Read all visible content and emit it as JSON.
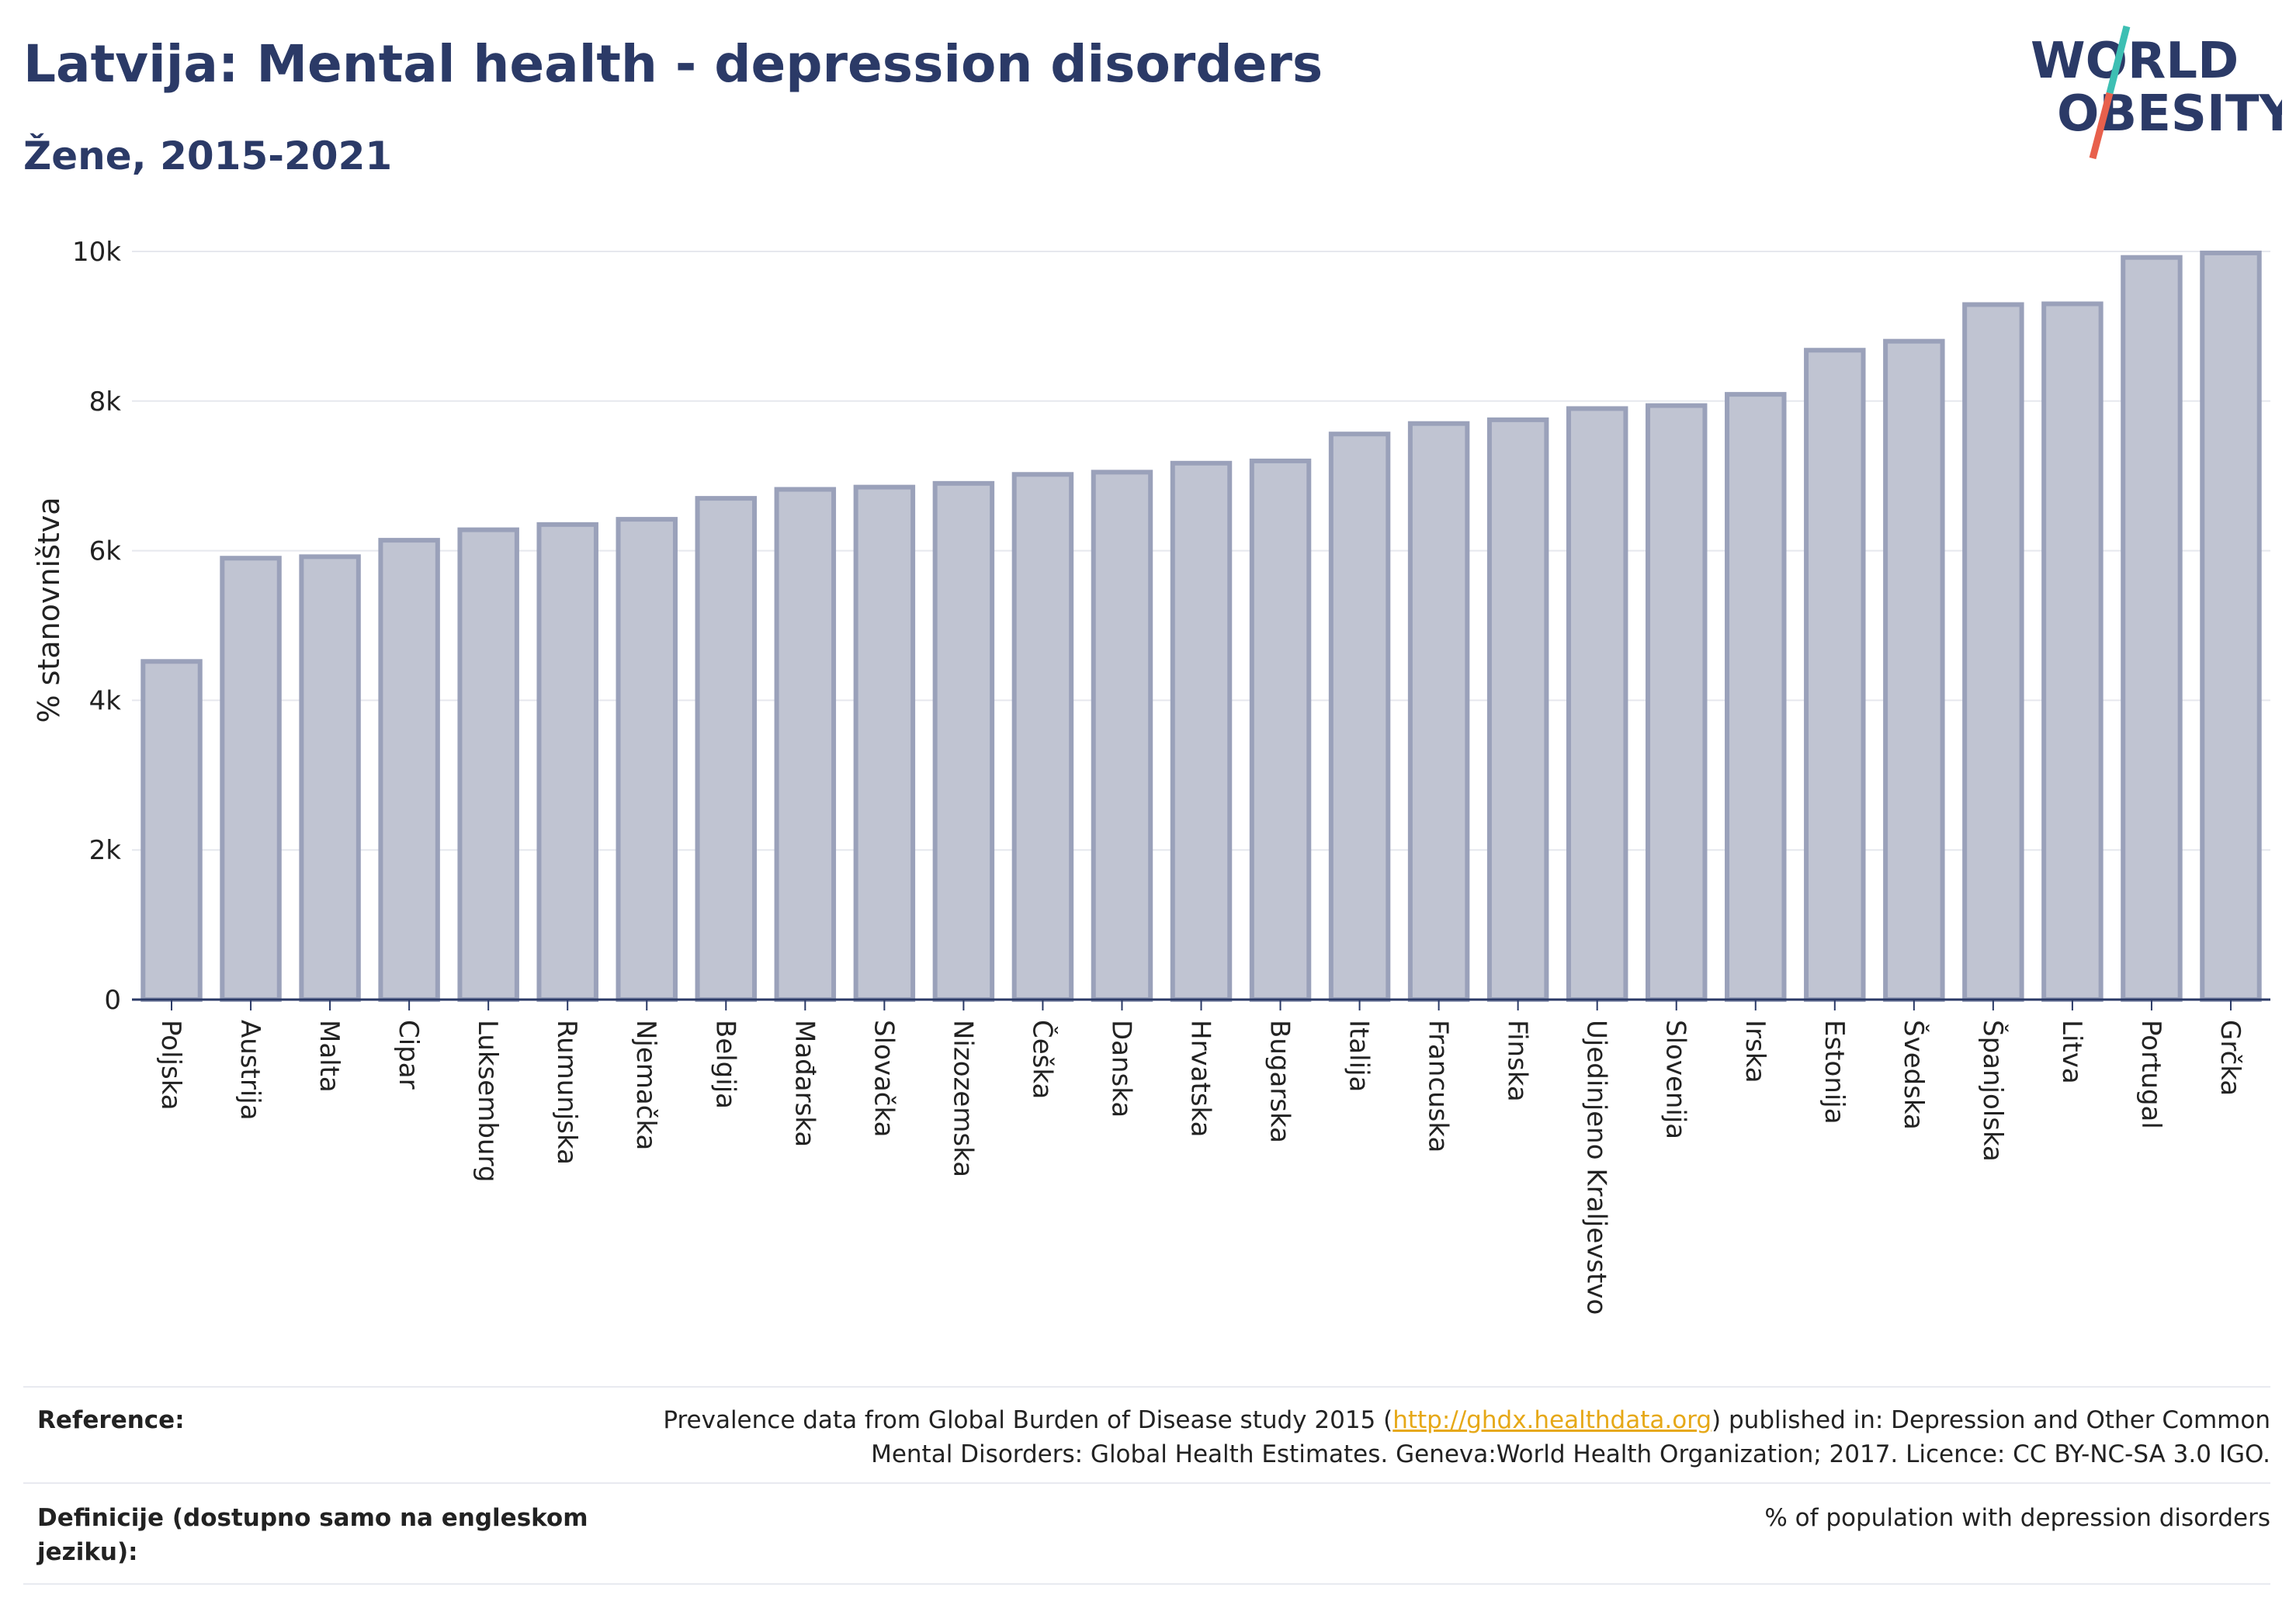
{
  "header": {
    "title": "Latvija: Mental health - depression disorders",
    "subtitle": "Žene, 2015-2021"
  },
  "logo": {
    "line1": "WORLD",
    "line2": "OBESITY",
    "colors": {
      "text": "#2b3a67",
      "slash_top": "#3dbfb3",
      "slash_bottom": "#e8604c"
    }
  },
  "chart_data": {
    "type": "bar",
    "ylabel": "% stanovništva",
    "ylim": [
      0,
      10000
    ],
    "yticks": [
      {
        "value": 0,
        "label": "0"
      },
      {
        "value": 2000,
        "label": "2k"
      },
      {
        "value": 4000,
        "label": "4k"
      },
      {
        "value": 6000,
        "label": "6k"
      },
      {
        "value": 8000,
        "label": "8k"
      },
      {
        "value": 10000,
        "label": "10k"
      }
    ],
    "grid": true,
    "bar_fill": "#c0c4d2",
    "bar_stroke": "#9aa1ba",
    "categories": [
      "Poljska",
      "Austrija",
      "Malta",
      "Cipar",
      "Luksemburg",
      "Rumunjska",
      "Njemačka",
      "Belgija",
      "Mađarska",
      "Slovačka",
      "Nizozemska",
      "Češka",
      "Danska",
      "Hrvatska",
      "Bugarska",
      "Italija",
      "Francuska",
      "Finska",
      "Ujedinjeno Kraljevstvo",
      "Slovenija",
      "Irska",
      "Estonija",
      "Švedska",
      "Španjolska",
      "Litva",
      "Portugal",
      "Grčka"
    ],
    "values": [
      4520,
      5900,
      5920,
      6140,
      6280,
      6350,
      6420,
      6700,
      6820,
      6850,
      6900,
      7020,
      7050,
      7170,
      7200,
      7560,
      7700,
      7750,
      7900,
      7940,
      8090,
      8680,
      8800,
      9290,
      9300,
      9920,
      9980
    ]
  },
  "footer": {
    "reference_label": "Reference:",
    "reference_text_before": "Prevalence data from Global Burden of Disease study 2015 (",
    "reference_link": "http://ghdx.healthdata.org",
    "reference_text_after": ") published in: Depression and Other Common",
    "reference_text_line2": "Mental Disorders: Global Health Estimates. Geneva:World Health Organization; 2017. Licence: CC BY-NC-SA 3.0 IGO.",
    "definition_label": "Definicije (dostupno samo na engleskom jeziku):",
    "definition_text": "% of population with depression disorders"
  }
}
